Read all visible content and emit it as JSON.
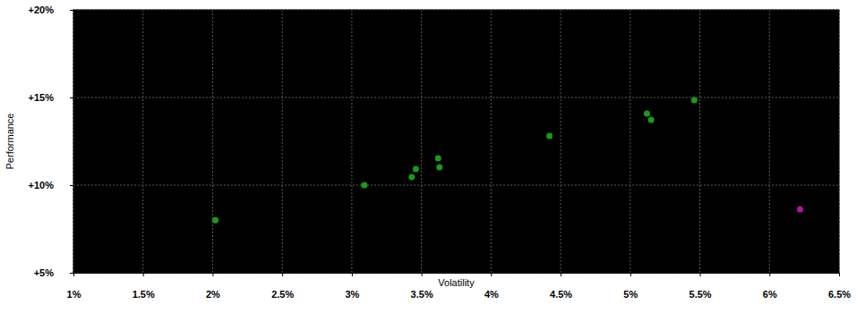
{
  "chart_data": {
    "type": "scatter",
    "x_label": "Volatility",
    "y_label": "Performance",
    "x": [
      2.02,
      3.09,
      3.43,
      3.46,
      3.62,
      3.63,
      4.42,
      5.12,
      5.15,
      5.46,
      6.22
    ],
    "values": [
      8.0,
      10.0,
      10.46,
      10.92,
      11.53,
      11.02,
      12.8,
      14.08,
      13.72,
      14.85,
      8.62
    ],
    "colors": [
      "#1a9a1a",
      "#1a9a1a",
      "#1a9a1a",
      "#1a9a1a",
      "#1a9a1a",
      "#1a9a1a",
      "#1a9a1a",
      "#1a9a1a",
      "#1a9a1a",
      "#1a9a1a",
      "#b0169c"
    ],
    "xlim": [
      1,
      6.5
    ],
    "xticks": [
      {
        "value": 1,
        "label": "1%"
      },
      {
        "value": 1.5,
        "label": "1.5%"
      },
      {
        "value": 2,
        "label": "2%"
      },
      {
        "value": 2.5,
        "label": "2.5%"
      },
      {
        "value": 3,
        "label": "3%"
      },
      {
        "value": 3.5,
        "label": "3.5%"
      },
      {
        "value": 4,
        "label": "4%"
      },
      {
        "value": 4.5,
        "label": "4.5%"
      },
      {
        "value": 5,
        "label": "5%"
      },
      {
        "value": 5.5,
        "label": "5.5%"
      },
      {
        "value": 6,
        "label": "6%"
      },
      {
        "value": 6.5,
        "label": "6.5%"
      }
    ],
    "ylim": [
      5,
      20
    ],
    "yticks": [
      {
        "value": 5,
        "label": "+5%"
      },
      {
        "value": 10,
        "label": "+10%"
      },
      {
        "value": 15,
        "label": "+15%"
      },
      {
        "value": 20,
        "label": "+20%"
      }
    ],
    "grid": true,
    "marker": "circle"
  }
}
